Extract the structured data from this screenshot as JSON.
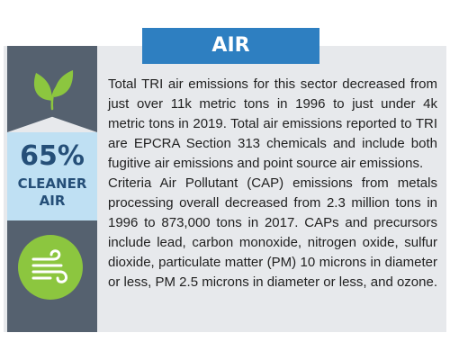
{
  "header": {
    "title": "AIR"
  },
  "sidebar": {
    "top_icon": "leaf-icon",
    "stat_value": "65%",
    "stat_label_line1": "CLEANER",
    "stat_label_line2": "AIR",
    "bottom_icon": "wind-icon"
  },
  "content": {
    "paragraph_1": "Total TRI air emissions for this sector decreased from just over 11k metric tons in 1996 to just under 4k metric tons in 2019. Total air emissions reported to TRI are EPCRA Section 313 chemicals and include both fugitive air emissions and point source air emissions.",
    "paragraph_2": "Criteria Air Pollutant (CAP) emissions from metals processing overall  decreased from 2.3 million tons in 1996 to 873,000 tons in 2017. CAPs and precursors include lead, carbon monoxide, nitrogen oxide, sulfur dioxide, particulate matter (PM) 10 microns in diameter or less, PM 2.5 microns in diameter or less, and ozone."
  },
  "colors": {
    "banner": "#2e7fc1",
    "sidebar_dark": "#55616f",
    "stat_background": "#bfe0f3",
    "stat_text": "#254f78",
    "accent_green": "#8cc63f",
    "card_background": "#e7e9ec"
  }
}
